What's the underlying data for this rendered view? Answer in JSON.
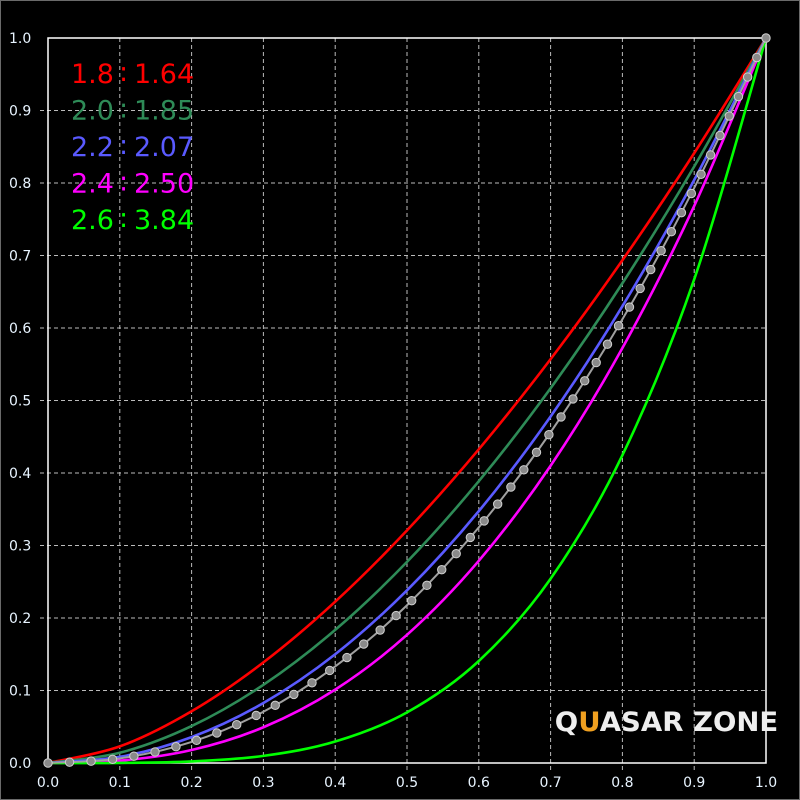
{
  "chart_data": {
    "type": "line",
    "xlim": [
      0,
      1
    ],
    "ylim": [
      0,
      1
    ],
    "grid": true,
    "legend_placement": "top-left",
    "x": [
      0,
      0.1,
      0.2,
      0.3,
      0.4,
      0.5,
      0.6,
      0.7,
      0.8,
      0.9,
      1.0
    ],
    "x_ticks": [
      "0.0",
      "0.1",
      "0.2",
      "0.3",
      "0.4",
      "0.5",
      "0.6",
      "0.7",
      "0.8",
      "0.9",
      "1.0"
    ],
    "y_ticks": [
      "0.0",
      "0.1",
      "0.2",
      "0.3",
      "0.4",
      "0.5",
      "0.6",
      "0.7",
      "0.8",
      "0.9",
      "1.0"
    ],
    "series": [
      {
        "name": "1.8 : 1.64",
        "color": "#ff0000",
        "values": [
          0,
          0.0229,
          0.0714,
          0.1388,
          0.2225,
          0.3209,
          0.4327,
          0.5571,
          0.6935,
          0.8412,
          1
        ]
      },
      {
        "name": "2.0 : 1.85",
        "color": "#2e8b57",
        "values": [
          0,
          0.0141,
          0.0509,
          0.1078,
          0.1836,
          0.2774,
          0.3887,
          0.5169,
          0.6617,
          0.8228,
          1
        ]
      },
      {
        "name": "2.2 : 2.07",
        "color": "#5a5aff",
        "values": [
          0,
          0.0085,
          0.0357,
          0.0827,
          0.15,
          0.2382,
          0.3474,
          0.478,
          0.6301,
          0.8041,
          1
        ]
      },
      {
        "name": "2.4 : 2.50",
        "color": "#ff00ff",
        "values": [
          0,
          0.0032,
          0.0179,
          0.0493,
          0.1012,
          0.1768,
          0.2789,
          0.41,
          0.5724,
          0.7684,
          1
        ]
      },
      {
        "name": "2.6 : 3.84",
        "color": "#00ff00",
        "values": [
          0,
          0.0001,
          0.0021,
          0.0098,
          0.0296,
          0.0698,
          0.1407,
          0.2541,
          0.4245,
          0.6671,
          1
        ]
      }
    ],
    "reference": {
      "color": "#a0a0a0",
      "style": "dotted-markers",
      "values": [
        0,
        0.0063,
        0.029,
        0.0707,
        0.1332,
        0.2176,
        0.325,
        0.4562,
        0.6121,
        0.7932,
        1
      ]
    }
  },
  "legend": [
    {
      "left": "1.8",
      "right": "1.64"
    },
    {
      "left": "2.0",
      "right": "1.85"
    },
    {
      "left": "2.2",
      "right": "2.07"
    },
    {
      "left": "2.4",
      "right": "2.50"
    },
    {
      "left": "2.6",
      "right": "3.84"
    }
  ],
  "watermark": {
    "part1": "Q",
    "part2": "U",
    "part3": "ASAR ZONE"
  }
}
